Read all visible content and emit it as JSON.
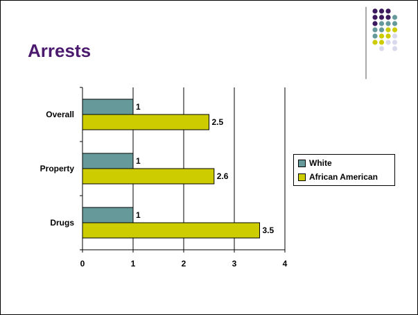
{
  "slide": {
    "title": "Arrests"
  },
  "colors": {
    "title": "#4b1a6e",
    "white_series": "#669999",
    "aa_series": "#cccc00",
    "dot_purple": "#3d1a5e",
    "dot_teal": "#669999",
    "dot_yellow": "#cccc00",
    "dot_lavender": "#d9d9ee"
  },
  "chart_data": {
    "type": "bar",
    "orientation": "horizontal",
    "categories": [
      "Overall",
      "Property",
      "Drugs"
    ],
    "series": [
      {
        "name": "White",
        "values": [
          1,
          1,
          1
        ]
      },
      {
        "name": "African American",
        "values": [
          2.5,
          2.6,
          3.5
        ]
      }
    ],
    "xlim": [
      0,
      4
    ],
    "xticks": [
      "0",
      "1",
      "2",
      "3",
      "4"
    ],
    "grid": true,
    "legend_position": "right",
    "data_labels": true
  }
}
